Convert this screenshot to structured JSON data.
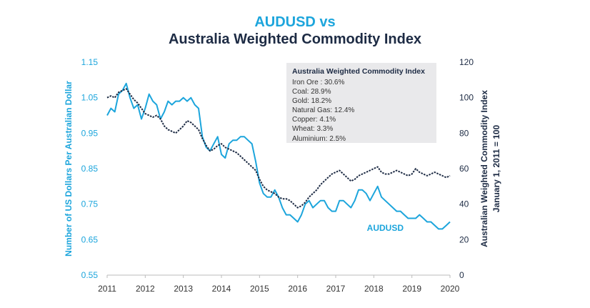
{
  "chart_data": {
    "type": "line",
    "title_line1": "AUDUSD vs",
    "title_line2": "Australia Weighted Commodity Index",
    "ylabel_left": "Number of US Dollars Per Australian Dollar",
    "ylabel_right_line1": "Australian Weighted Commodity Index",
    "ylabel_right_line2": "January 1, 2011 = 100",
    "ylim_left": [
      0.55,
      1.15
    ],
    "ylim_right": [
      0,
      120
    ],
    "xlim": [
      2011,
      2020
    ],
    "yticks_left": [
      "1.15",
      "1.05",
      "0.95",
      "0.85",
      "0.75",
      "0.65",
      "0.55"
    ],
    "yticks_right": [
      "120",
      "100",
      "80",
      "60",
      "40",
      "20",
      "0"
    ],
    "xticks": [
      "2011",
      "2012",
      "2013",
      "2014",
      "2015",
      "2016",
      "2017",
      "2018",
      "2019",
      "2020"
    ],
    "legend": {
      "title": "Australia Weighted Commodity Index",
      "items": [
        "Iron Ore : 30.6%",
        "Coal: 28.9%",
        "Gold: 18.2%",
        "Natural Gas: 12.4%",
        "Copper: 4.1%",
        "Wheat: 3.3%",
        "Aluminium: 2.5%"
      ]
    },
    "series": [
      {
        "name": "AUDUSD",
        "axis": "left",
        "color": "#1ca5dc",
        "x": [
          2011.0,
          2011.1,
          2011.2,
          2011.3,
          2011.4,
          2011.5,
          2011.6,
          2011.7,
          2011.8,
          2011.9,
          2012.0,
          2012.1,
          2012.2,
          2012.3,
          2012.4,
          2012.5,
          2012.6,
          2012.7,
          2012.8,
          2012.9,
          2013.0,
          2013.1,
          2013.2,
          2013.3,
          2013.4,
          2013.5,
          2013.6,
          2013.7,
          2013.8,
          2013.9,
          2014.0,
          2014.1,
          2014.2,
          2014.3,
          2014.4,
          2014.5,
          2014.6,
          2014.7,
          2014.8,
          2014.9,
          2015.0,
          2015.1,
          2015.2,
          2015.3,
          2015.4,
          2015.5,
          2015.6,
          2015.7,
          2015.8,
          2015.9,
          2016.0,
          2016.1,
          2016.2,
          2016.3,
          2016.4,
          2016.5,
          2016.6,
          2016.7,
          2016.8,
          2016.9,
          2017.0,
          2017.1,
          2017.2,
          2017.3,
          2017.4,
          2017.5,
          2017.6,
          2017.7,
          2017.8,
          2017.9,
          2018.0,
          2018.1,
          2018.2,
          2018.3,
          2018.4,
          2018.5,
          2018.6,
          2018.7,
          2018.8,
          2018.9,
          2019.0,
          2019.1,
          2019.2,
          2019.3,
          2019.4,
          2019.5,
          2019.6,
          2019.7,
          2019.8,
          2019.9,
          2020.0
        ],
        "values": [
          1.0,
          1.02,
          1.01,
          1.06,
          1.07,
          1.09,
          1.05,
          1.02,
          1.03,
          0.99,
          1.02,
          1.06,
          1.04,
          1.03,
          0.99,
          1.01,
          1.04,
          1.03,
          1.04,
          1.04,
          1.05,
          1.04,
          1.05,
          1.03,
          1.02,
          0.94,
          0.91,
          0.9,
          0.92,
          0.94,
          0.89,
          0.88,
          0.92,
          0.93,
          0.93,
          0.94,
          0.94,
          0.93,
          0.92,
          0.87,
          0.81,
          0.78,
          0.77,
          0.77,
          0.79,
          0.77,
          0.74,
          0.72,
          0.72,
          0.71,
          0.7,
          0.72,
          0.75,
          0.76,
          0.74,
          0.75,
          0.76,
          0.76,
          0.74,
          0.73,
          0.73,
          0.76,
          0.76,
          0.75,
          0.74,
          0.76,
          0.79,
          0.79,
          0.78,
          0.76,
          0.78,
          0.8,
          0.77,
          0.76,
          0.75,
          0.74,
          0.73,
          0.73,
          0.72,
          0.71,
          0.71,
          0.71,
          0.72,
          0.71,
          0.7,
          0.7,
          0.69,
          0.68,
          0.68,
          0.69,
          0.7
        ]
      },
      {
        "name": "Australia Weighted Commodity Index",
        "axis": "right",
        "color": "#1d2b44",
        "x": [
          2011.0,
          2011.1,
          2011.2,
          2011.3,
          2011.4,
          2011.5,
          2011.6,
          2011.7,
          2011.8,
          2011.9,
          2012.0,
          2012.1,
          2012.2,
          2012.3,
          2012.4,
          2012.5,
          2012.6,
          2012.7,
          2012.8,
          2012.9,
          2013.0,
          2013.1,
          2013.2,
          2013.3,
          2013.4,
          2013.5,
          2013.6,
          2013.7,
          2013.8,
          2013.9,
          2014.0,
          2014.1,
          2014.2,
          2014.3,
          2014.4,
          2014.5,
          2014.6,
          2014.7,
          2014.8,
          2014.9,
          2015.0,
          2015.1,
          2015.2,
          2015.3,
          2015.4,
          2015.5,
          2015.6,
          2015.7,
          2015.8,
          2015.9,
          2016.0,
          2016.1,
          2016.2,
          2016.3,
          2016.4,
          2016.5,
          2016.6,
          2016.7,
          2016.8,
          2016.9,
          2017.0,
          2017.1,
          2017.2,
          2017.3,
          2017.4,
          2017.5,
          2017.6,
          2017.7,
          2017.8,
          2017.9,
          2018.0,
          2018.1,
          2018.2,
          2018.3,
          2018.4,
          2018.5,
          2018.6,
          2018.7,
          2018.8,
          2018.9,
          2019.0,
          2019.1,
          2019.2,
          2019.3,
          2019.4,
          2019.5,
          2019.6,
          2019.7,
          2019.8,
          2019.9,
          2020.0
        ],
        "values": [
          100,
          101,
          100,
          103,
          104,
          105,
          102,
          99,
          97,
          94,
          91,
          90,
          89,
          90,
          88,
          84,
          82,
          81,
          80,
          82,
          84,
          87,
          86,
          84,
          82,
          77,
          73,
          70,
          71,
          73,
          74,
          72,
          71,
          70,
          69,
          67,
          65,
          63,
          61,
          59,
          54,
          50,
          48,
          47,
          46,
          44,
          43,
          43,
          42,
          40,
          38,
          39,
          41,
          44,
          46,
          48,
          51,
          53,
          55,
          57,
          58,
          59,
          57,
          55,
          53,
          54,
          56,
          57,
          58,
          59,
          60,
          61,
          58,
          57,
          57,
          58,
          59,
          58,
          57,
          56,
          57,
          60,
          58,
          57,
          56,
          57,
          58,
          57,
          56,
          55,
          56
        ]
      }
    ],
    "annotations": [
      {
        "text": "AUDUSD",
        "x": 2018.3,
        "y_left": 0.675
      }
    ]
  }
}
